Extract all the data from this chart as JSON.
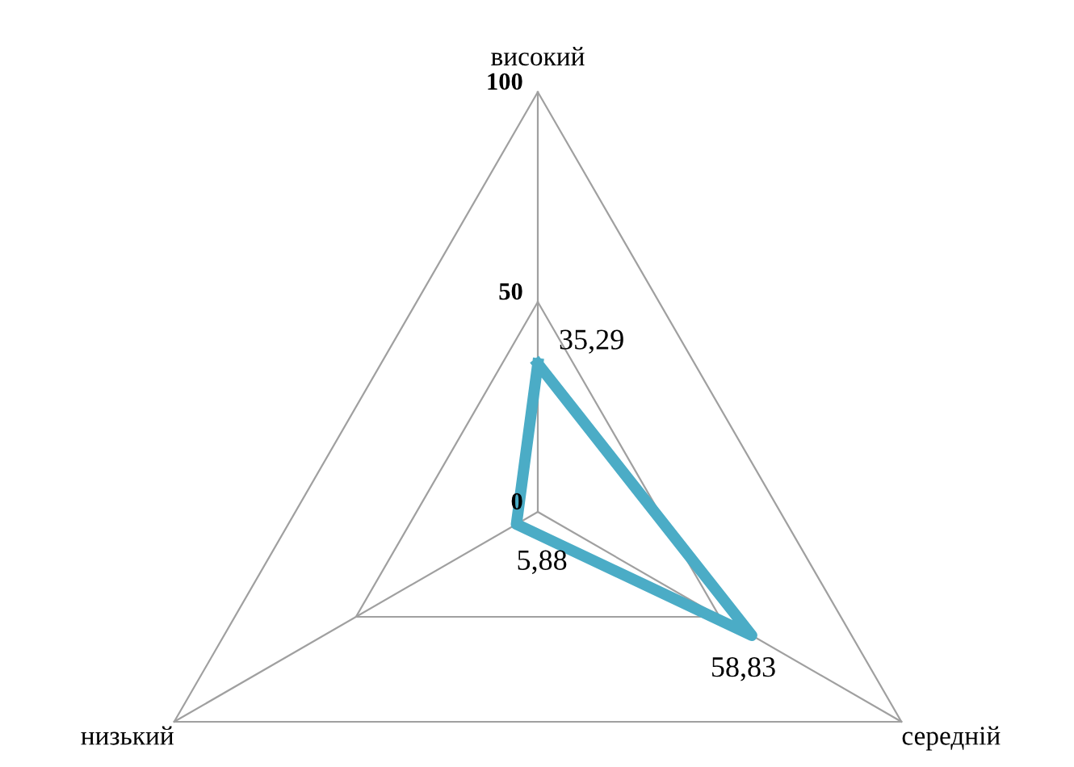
{
  "chart_data": {
    "type": "radar",
    "categories": [
      "високий",
      "середній",
      "низький"
    ],
    "series": [
      {
        "color": "#4bacc6",
        "values": [
          35.29,
          58.83,
          5.88
        ],
        "value_labels": [
          "35,29",
          "58,83",
          "5,88"
        ]
      }
    ],
    "ylim": [
      0,
      100
    ],
    "yticks": [
      0,
      50,
      100
    ],
    "grid": true
  }
}
